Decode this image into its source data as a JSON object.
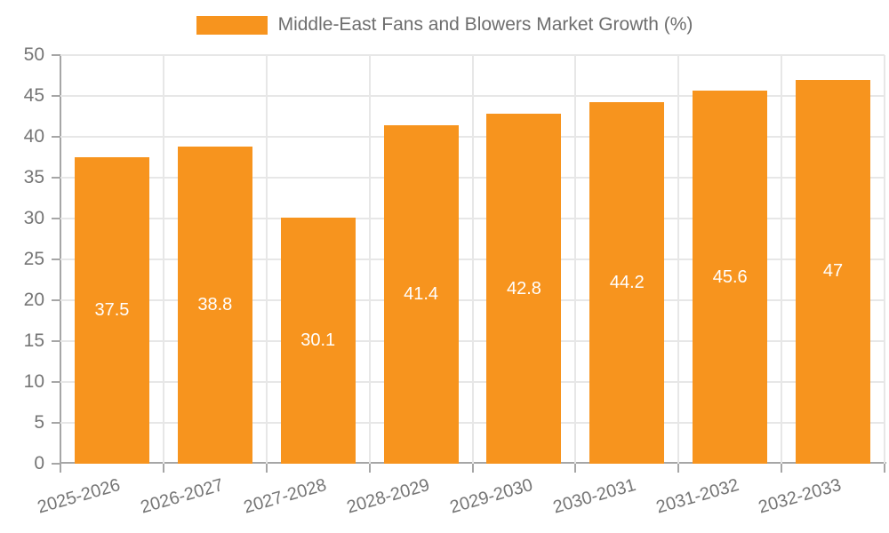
{
  "chart_data": {
    "type": "bar",
    "title": "Middle-East Fans and Blowers Market Growth (%)",
    "categories": [
      "2025-2026",
      "2026-2027",
      "2027-2028",
      "2028-2029",
      "2029-2030",
      "2030-2031",
      "2031-2032",
      "2032-2033"
    ],
    "values": [
      37.5,
      38.8,
      30.1,
      41.4,
      42.8,
      44.2,
      45.6,
      47
    ],
    "value_labels": [
      "37.5",
      "38.8",
      "30.1",
      "41.4",
      "42.8",
      "44.2",
      "45.6",
      "47"
    ],
    "xlabel": "",
    "ylabel": "",
    "ylim": [
      0,
      50
    ],
    "ytick_step": 5,
    "ytick_labels": [
      "0",
      "5",
      "10",
      "15",
      "20",
      "25",
      "30",
      "35",
      "40",
      "45",
      "50"
    ],
    "grid": "horizontal and vertical gridlines on",
    "legend_position": "top-center",
    "bar_label_position": "inside-center",
    "xlabel_rotation_deg": -16,
    "colors": {
      "bar": "#F7941E",
      "bar_label": "#FFFFFF",
      "grid": "#E7E7E7",
      "axis": "#A6A6A6",
      "tick_label": "#757575",
      "title": "#6E6E6E",
      "background": "#FFFFFF"
    }
  }
}
